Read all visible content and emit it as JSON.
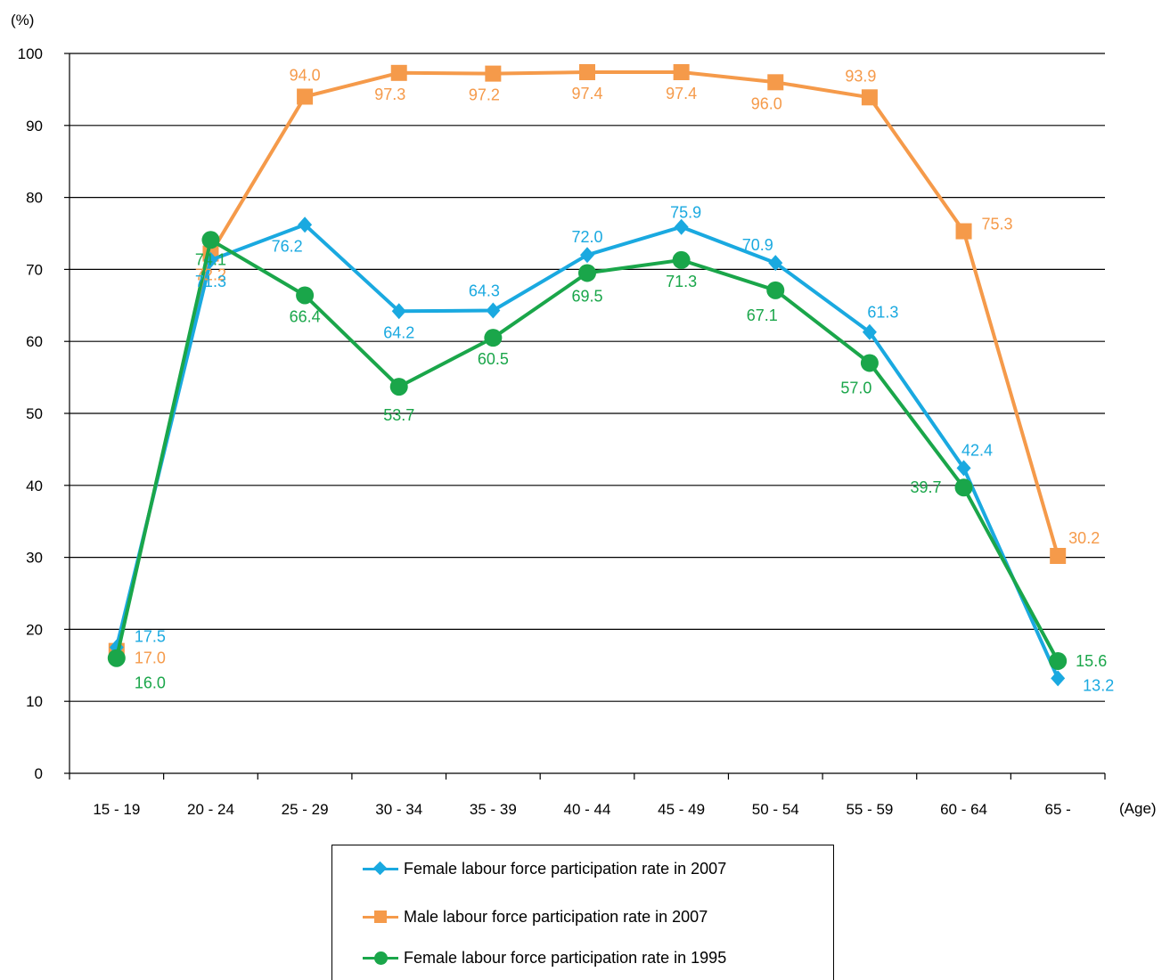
{
  "chart_data": {
    "type": "line",
    "ylabel": "(%)",
    "xlabel": "(Age)",
    "ylim": [
      0,
      100
    ],
    "yticks": [
      0,
      10,
      20,
      30,
      40,
      50,
      60,
      70,
      80,
      90,
      100
    ],
    "grid": "horizontal",
    "categories": [
      "15 - 19",
      "20 - 24",
      "25 - 29",
      "30 - 34",
      "35 - 39",
      "40 - 44",
      "45 - 49",
      "50 - 54",
      "55 - 59",
      "60 - 64",
      "65 -"
    ],
    "series": [
      {
        "name": "Female labour force participation rate in 2007",
        "color": "#1aa9e0",
        "marker": "diamond",
        "values": [
          17.5,
          71.3,
          76.2,
          64.2,
          64.3,
          72.0,
          75.9,
          70.9,
          61.3,
          42.4,
          13.2
        ]
      },
      {
        "name": "Male labour force participation rate in 2007",
        "color": "#f59a4a",
        "marker": "square",
        "values": [
          17.0,
          72.2,
          94.0,
          97.3,
          97.2,
          97.4,
          97.4,
          96.0,
          93.9,
          75.3,
          30.2
        ]
      },
      {
        "name": "Female labour force participation rate in 1995",
        "color": "#1aa64a",
        "marker": "circle",
        "values": [
          16.0,
          74.1,
          66.4,
          53.7,
          60.5,
          69.5,
          71.3,
          67.1,
          57.0,
          39.7,
          15.6
        ]
      }
    ],
    "legend_position": "bottom-center"
  }
}
